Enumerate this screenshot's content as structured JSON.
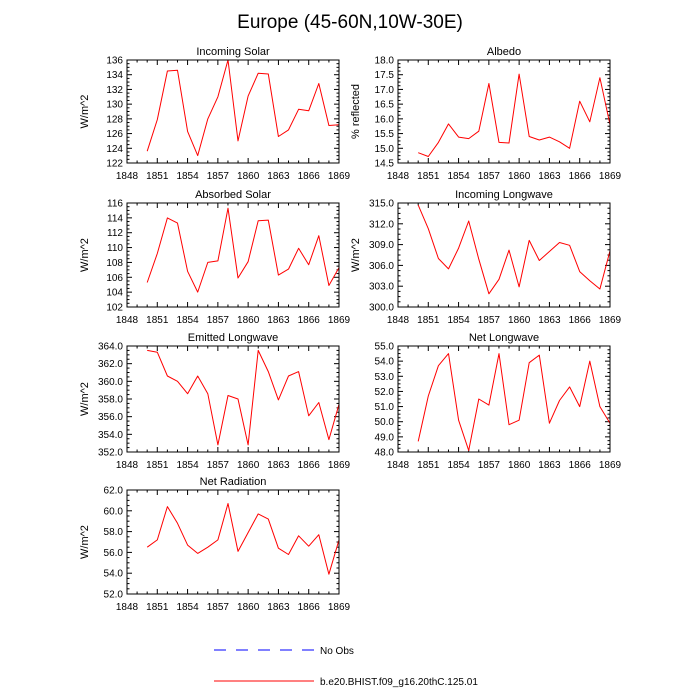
{
  "figure": {
    "title": "Europe (45-60N,10W-30E)",
    "legend": [
      {
        "label": "No Obs",
        "color": "#0000ff",
        "dash": "dashed"
      },
      {
        "label": "b.e20.BHIST.f09_g16.20thC.125.01",
        "color": "#ff0000",
        "dash": "solid"
      }
    ]
  },
  "chart_data": [
    {
      "type": "line",
      "title": "Incoming Solar",
      "ylabel": "W/m^2",
      "xlim": [
        1848,
        1869
      ],
      "ylim": [
        122,
        136
      ],
      "xticks": [
        1848,
        1851,
        1854,
        1857,
        1860,
        1863,
        1866,
        1869
      ],
      "xtick_labels": [
        "1848",
        "1851",
        "1854",
        "1857",
        "1860",
        "1863",
        "1866",
        "1869"
      ],
      "yticks": [
        122,
        124,
        126,
        128,
        130,
        132,
        134,
        136
      ],
      "ytick_labels": [
        "122",
        "124",
        "126",
        "128",
        "130",
        "132",
        "134",
        "136"
      ],
      "series": [
        {
          "color": "#ff0000",
          "x": [
            1850,
            1851,
            1852,
            1853,
            1854,
            1855,
            1856,
            1857,
            1858,
            1859,
            1860,
            1861,
            1862,
            1863,
            1864,
            1865,
            1866,
            1867,
            1868,
            1869
          ],
          "values": [
            123.6,
            127.9,
            134.5,
            134.6,
            126.3,
            123.0,
            128.0,
            131.0,
            136.0,
            125.0,
            131.1,
            134.2,
            134.1,
            125.6,
            126.5,
            129.3,
            129.1,
            132.8,
            127.1,
            127.2
          ]
        }
      ]
    },
    {
      "type": "line",
      "title": "Albedo",
      "ylabel": "% reflected",
      "xlim": [
        1848,
        1869
      ],
      "ylim": [
        14.5,
        18.0
      ],
      "xticks": [
        1848,
        1851,
        1854,
        1857,
        1860,
        1863,
        1866,
        1869
      ],
      "xtick_labels": [
        "1848",
        "1851",
        "1854",
        "1857",
        "1860",
        "1863",
        "1866",
        "1869"
      ],
      "yticks": [
        14.5,
        15.0,
        15.5,
        16.0,
        16.5,
        17.0,
        17.5,
        18.0
      ],
      "ytick_labels": [
        "14.5",
        "15.0",
        "15.5",
        "16.0",
        "16.5",
        "17.0",
        "17.5",
        "18.0"
      ],
      "series": [
        {
          "color": "#ff0000",
          "x": [
            1850,
            1851,
            1852,
            1853,
            1854,
            1855,
            1856,
            1857,
            1858,
            1859,
            1860,
            1861,
            1862,
            1863,
            1864,
            1865,
            1866,
            1867,
            1868,
            1869
          ],
          "values": [
            14.85,
            14.72,
            15.2,
            15.83,
            15.38,
            15.33,
            15.58,
            17.2,
            15.2,
            15.18,
            17.52,
            15.4,
            15.28,
            15.38,
            15.22,
            15.0,
            16.6,
            15.9,
            17.4,
            15.8
          ]
        }
      ]
    },
    {
      "type": "line",
      "title": "Absorbed Solar",
      "ylabel": "W/m^2",
      "xlim": [
        1848,
        1869
      ],
      "ylim": [
        102,
        116
      ],
      "xticks": [
        1848,
        1851,
        1854,
        1857,
        1860,
        1863,
        1866,
        1869
      ],
      "xtick_labels": [
        "1848",
        "1851",
        "1854",
        "1857",
        "1860",
        "1863",
        "1866",
        "1869"
      ],
      "yticks": [
        102,
        104,
        106,
        108,
        110,
        112,
        114,
        116
      ],
      "ytick_labels": [
        "102",
        "104",
        "106",
        "108",
        "110",
        "112",
        "114",
        "116"
      ],
      "series": [
        {
          "color": "#ff0000",
          "x": [
            1850,
            1851,
            1852,
            1853,
            1854,
            1855,
            1856,
            1857,
            1858,
            1859,
            1860,
            1861,
            1862,
            1863,
            1864,
            1865,
            1866,
            1867,
            1868,
            1869
          ],
          "values": [
            105.3,
            109.2,
            114.0,
            113.3,
            106.8,
            104.0,
            108.0,
            108.2,
            115.3,
            105.9,
            108.1,
            113.6,
            113.7,
            106.3,
            107.1,
            109.9,
            107.7,
            111.6,
            104.9,
            107.3
          ]
        }
      ]
    },
    {
      "type": "line",
      "title": "Incoming Longwave",
      "ylabel": "W/m^2",
      "xlim": [
        1848,
        1869
      ],
      "ylim": [
        300.0,
        315.0
      ],
      "xticks": [
        1848,
        1851,
        1854,
        1857,
        1860,
        1863,
        1866,
        1869
      ],
      "xtick_labels": [
        "1848",
        "1851",
        "1854",
        "1857",
        "1860",
        "1863",
        "1866",
        "1869"
      ],
      "yticks": [
        300.0,
        303.0,
        306.0,
        309.0,
        312.0,
        315.0
      ],
      "ytick_labels": [
        "300.0",
        "303.0",
        "306.0",
        "309.0",
        "312.0",
        "315.0"
      ],
      "series": [
        {
          "color": "#ff0000",
          "x": [
            1850,
            1851,
            1852,
            1853,
            1854,
            1855,
            1856,
            1857,
            1858,
            1859,
            1860,
            1861,
            1862,
            1863,
            1864,
            1865,
            1866,
            1867,
            1868,
            1869
          ],
          "values": [
            314.7,
            311.3,
            307.0,
            305.5,
            308.5,
            312.4,
            306.9,
            301.9,
            304.0,
            308.2,
            302.9,
            309.6,
            306.7,
            308.0,
            309.3,
            308.9,
            305.1,
            303.8,
            302.6,
            308.1
          ]
        }
      ]
    },
    {
      "type": "line",
      "title": "Emitted Longwave",
      "ylabel": "W/m^2",
      "xlim": [
        1848,
        1869
      ],
      "ylim": [
        352.0,
        364.0
      ],
      "xticks": [
        1848,
        1851,
        1854,
        1857,
        1860,
        1863,
        1866,
        1869
      ],
      "xtick_labels": [
        "1848",
        "1851",
        "1854",
        "1857",
        "1860",
        "1863",
        "1866",
        "1869"
      ],
      "yticks": [
        352.0,
        354.0,
        356.0,
        358.0,
        360.0,
        362.0,
        364.0
      ],
      "ytick_labels": [
        "352.0",
        "354.0",
        "356.0",
        "358.0",
        "360.0",
        "362.0",
        "364.0"
      ],
      "series": [
        {
          "color": "#ff0000",
          "x": [
            1850,
            1851,
            1852,
            1853,
            1854,
            1855,
            1856,
            1857,
            1858,
            1859,
            1860,
            1861,
            1862,
            1863,
            1864,
            1865,
            1866,
            1867,
            1868,
            1869
          ],
          "values": [
            363.5,
            363.3,
            360.6,
            360.0,
            358.6,
            360.6,
            358.6,
            352.8,
            358.4,
            358.0,
            352.8,
            363.5,
            361.1,
            357.9,
            360.6,
            361.1,
            356.1,
            357.6,
            353.4,
            357.4
          ]
        }
      ]
    },
    {
      "type": "line",
      "title": "Net Longwave",
      "ylabel": "",
      "xlim": [
        1848,
        1869
      ],
      "ylim": [
        48.0,
        55.0
      ],
      "xticks": [
        1848,
        1851,
        1854,
        1857,
        1860,
        1863,
        1866,
        1869
      ],
      "xtick_labels": [
        "1848",
        "1851",
        "1854",
        "1857",
        "1860",
        "1863",
        "1866",
        "1869"
      ],
      "yticks": [
        48.0,
        49.0,
        50.0,
        51.0,
        52.0,
        53.0,
        54.0,
        55.0
      ],
      "ytick_labels": [
        "48.0",
        "49.0",
        "50.0",
        "51.0",
        "52.0",
        "53.0",
        "54.0",
        "55.0"
      ],
      "series": [
        {
          "color": "#ff0000",
          "x": [
            1850,
            1851,
            1852,
            1853,
            1854,
            1855,
            1856,
            1857,
            1858,
            1859,
            1860,
            1861,
            1862,
            1863,
            1864,
            1865,
            1866,
            1867,
            1868,
            1869
          ],
          "values": [
            48.7,
            51.7,
            53.7,
            54.5,
            50.1,
            48.1,
            51.5,
            51.1,
            54.5,
            49.8,
            50.1,
            53.9,
            54.4,
            49.9,
            51.4,
            52.3,
            51.0,
            54.0,
            51.0,
            49.9
          ]
        }
      ]
    },
    {
      "type": "line",
      "title": "Net Radiation",
      "ylabel": "W/m^2",
      "xlim": [
        1848,
        1869
      ],
      "ylim": [
        52.0,
        62.0
      ],
      "xticks": [
        1848,
        1851,
        1854,
        1857,
        1860,
        1863,
        1866,
        1869
      ],
      "xtick_labels": [
        "1848",
        "1851",
        "1854",
        "1857",
        "1860",
        "1863",
        "1866",
        "1869"
      ],
      "yticks": [
        52.0,
        54.0,
        56.0,
        58.0,
        60.0,
        62.0
      ],
      "ytick_labels": [
        "52.0",
        "54.0",
        "56.0",
        "58.0",
        "60.0",
        "62.0"
      ],
      "series": [
        {
          "color": "#ff0000",
          "x": [
            1850,
            1851,
            1852,
            1853,
            1854,
            1855,
            1856,
            1857,
            1858,
            1859,
            1860,
            1861,
            1862,
            1863,
            1864,
            1865,
            1866,
            1867,
            1868,
            1869
          ],
          "values": [
            56.5,
            57.2,
            60.4,
            58.8,
            56.7,
            55.9,
            56.5,
            57.2,
            60.7,
            56.1,
            57.9,
            59.7,
            59.2,
            56.4,
            55.8,
            57.6,
            56.6,
            57.7,
            53.9,
            57.2
          ]
        }
      ]
    }
  ]
}
